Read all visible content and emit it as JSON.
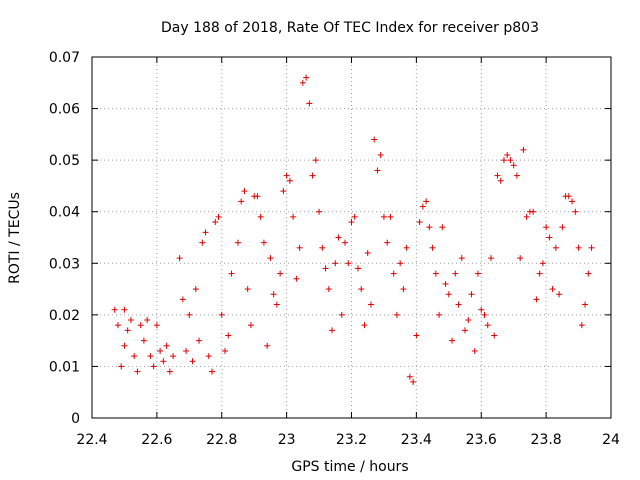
{
  "chart_data": {
    "type": "scatter",
    "title": "Day 188 of 2018, Rate Of TEC Index for receiver p803",
    "xlabel": "GPS time / hours",
    "ylabel": "ROTI / TECUs",
    "xlim": [
      22.4,
      24.0
    ],
    "ylim": [
      0,
      0.07
    ],
    "xticks": [
      "22.4",
      "22.6",
      "22.8",
      "23",
      "23.2",
      "23.4",
      "23.6",
      "23.8",
      "24"
    ],
    "xtick_values": [
      22.4,
      22.6,
      22.8,
      23.0,
      23.2,
      23.4,
      23.6,
      23.8,
      24.0
    ],
    "yticks": [
      "0",
      "0.01",
      "0.02",
      "0.03",
      "0.04",
      "0.05",
      "0.06",
      "0.07"
    ],
    "ytick_values": [
      0,
      0.01,
      0.02,
      0.03,
      0.04,
      0.05,
      0.06,
      0.07
    ],
    "grid": true,
    "marker": "+",
    "color": "#dd0000",
    "series": [
      {
        "name": "p803",
        "points": [
          [
            22.47,
            0.021
          ],
          [
            22.48,
            0.018
          ],
          [
            22.49,
            0.01
          ],
          [
            22.5,
            0.021
          ],
          [
            22.5,
            0.014
          ],
          [
            22.51,
            0.017
          ],
          [
            22.52,
            0.019
          ],
          [
            22.53,
            0.012
          ],
          [
            22.54,
            0.009
          ],
          [
            22.55,
            0.018
          ],
          [
            22.56,
            0.015
          ],
          [
            22.57,
            0.019
          ],
          [
            22.58,
            0.012
          ],
          [
            22.59,
            0.01
          ],
          [
            22.6,
            0.018
          ],
          [
            22.61,
            0.013
          ],
          [
            22.62,
            0.011
          ],
          [
            22.63,
            0.014
          ],
          [
            22.64,
            0.009
          ],
          [
            22.65,
            0.012
          ],
          [
            22.67,
            0.031
          ],
          [
            22.68,
            0.023
          ],
          [
            22.69,
            0.013
          ],
          [
            22.7,
            0.02
          ],
          [
            22.71,
            0.011
          ],
          [
            22.72,
            0.025
          ],
          [
            22.73,
            0.015
          ],
          [
            22.74,
            0.034
          ],
          [
            22.75,
            0.036
          ],
          [
            22.76,
            0.012
          ],
          [
            22.77,
            0.009
          ],
          [
            22.78,
            0.038
          ],
          [
            22.79,
            0.039
          ],
          [
            22.8,
            0.02
          ],
          [
            22.81,
            0.013
          ],
          [
            22.82,
            0.016
          ],
          [
            22.83,
            0.028
          ],
          [
            22.85,
            0.034
          ],
          [
            22.86,
            0.042
          ],
          [
            22.87,
            0.044
          ],
          [
            22.88,
            0.025
          ],
          [
            22.89,
            0.018
          ],
          [
            22.9,
            0.043
          ],
          [
            22.91,
            0.043
          ],
          [
            22.92,
            0.039
          ],
          [
            22.93,
            0.034
          ],
          [
            22.94,
            0.014
          ],
          [
            22.95,
            0.031
          ],
          [
            22.96,
            0.024
          ],
          [
            22.97,
            0.022
          ],
          [
            22.98,
            0.028
          ],
          [
            22.99,
            0.044
          ],
          [
            23.0,
            0.047
          ],
          [
            23.01,
            0.046
          ],
          [
            23.02,
            0.039
          ],
          [
            23.03,
            0.027
          ],
          [
            23.04,
            0.033
          ],
          [
            23.05,
            0.065
          ],
          [
            23.06,
            0.066
          ],
          [
            23.07,
            0.061
          ],
          [
            23.08,
            0.047
          ],
          [
            23.09,
            0.05
          ],
          [
            23.1,
            0.04
          ],
          [
            23.11,
            0.033
          ],
          [
            23.12,
            0.029
          ],
          [
            23.13,
            0.025
          ],
          [
            23.14,
            0.017
          ],
          [
            23.15,
            0.03
          ],
          [
            23.16,
            0.035
          ],
          [
            23.17,
            0.02
          ],
          [
            23.18,
            0.034
          ],
          [
            23.19,
            0.03
          ],
          [
            23.2,
            0.038
          ],
          [
            23.21,
            0.039
          ],
          [
            23.22,
            0.029
          ],
          [
            23.23,
            0.025
          ],
          [
            23.24,
            0.018
          ],
          [
            23.25,
            0.032
          ],
          [
            23.26,
            0.022
          ],
          [
            23.27,
            0.054
          ],
          [
            23.28,
            0.048
          ],
          [
            23.29,
            0.051
          ],
          [
            23.3,
            0.039
          ],
          [
            23.31,
            0.034
          ],
          [
            23.32,
            0.039
          ],
          [
            23.33,
            0.028
          ],
          [
            23.34,
            0.02
          ],
          [
            23.35,
            0.03
          ],
          [
            23.36,
            0.025
          ],
          [
            23.37,
            0.033
          ],
          [
            23.38,
            0.008
          ],
          [
            23.39,
            0.007
          ],
          [
            23.4,
            0.016
          ],
          [
            23.41,
            0.038
          ],
          [
            23.42,
            0.041
          ],
          [
            23.43,
            0.042
          ],
          [
            23.44,
            0.037
          ],
          [
            23.45,
            0.033
          ],
          [
            23.46,
            0.028
          ],
          [
            23.47,
            0.02
          ],
          [
            23.48,
            0.037
          ],
          [
            23.49,
            0.026
          ],
          [
            23.5,
            0.024
          ],
          [
            23.51,
            0.015
          ],
          [
            23.52,
            0.028
          ],
          [
            23.53,
            0.022
          ],
          [
            23.54,
            0.031
          ],
          [
            23.55,
            0.017
          ],
          [
            23.56,
            0.019
          ],
          [
            23.57,
            0.024
          ],
          [
            23.58,
            0.013
          ],
          [
            23.59,
            0.028
          ],
          [
            23.6,
            0.021
          ],
          [
            23.61,
            0.02
          ],
          [
            23.62,
            0.018
          ],
          [
            23.63,
            0.031
          ],
          [
            23.64,
            0.016
          ],
          [
            23.65,
            0.047
          ],
          [
            23.66,
            0.046
          ],
          [
            23.67,
            0.05
          ],
          [
            23.68,
            0.051
          ],
          [
            23.69,
            0.05
          ],
          [
            23.7,
            0.049
          ],
          [
            23.71,
            0.047
          ],
          [
            23.72,
            0.031
          ],
          [
            23.73,
            0.052
          ],
          [
            23.74,
            0.039
          ],
          [
            23.75,
            0.04
          ],
          [
            23.76,
            0.04
          ],
          [
            23.77,
            0.023
          ],
          [
            23.78,
            0.028
          ],
          [
            23.79,
            0.03
          ],
          [
            23.8,
            0.037
          ],
          [
            23.81,
            0.035
          ],
          [
            23.82,
            0.025
          ],
          [
            23.83,
            0.033
          ],
          [
            23.84,
            0.024
          ],
          [
            23.85,
            0.037
          ],
          [
            23.86,
            0.043
          ],
          [
            23.87,
            0.043
          ],
          [
            23.88,
            0.042
          ],
          [
            23.89,
            0.04
          ],
          [
            23.9,
            0.033
          ],
          [
            23.91,
            0.018
          ],
          [
            23.92,
            0.022
          ],
          [
            23.93,
            0.028
          ],
          [
            23.94,
            0.033
          ]
        ]
      }
    ]
  }
}
